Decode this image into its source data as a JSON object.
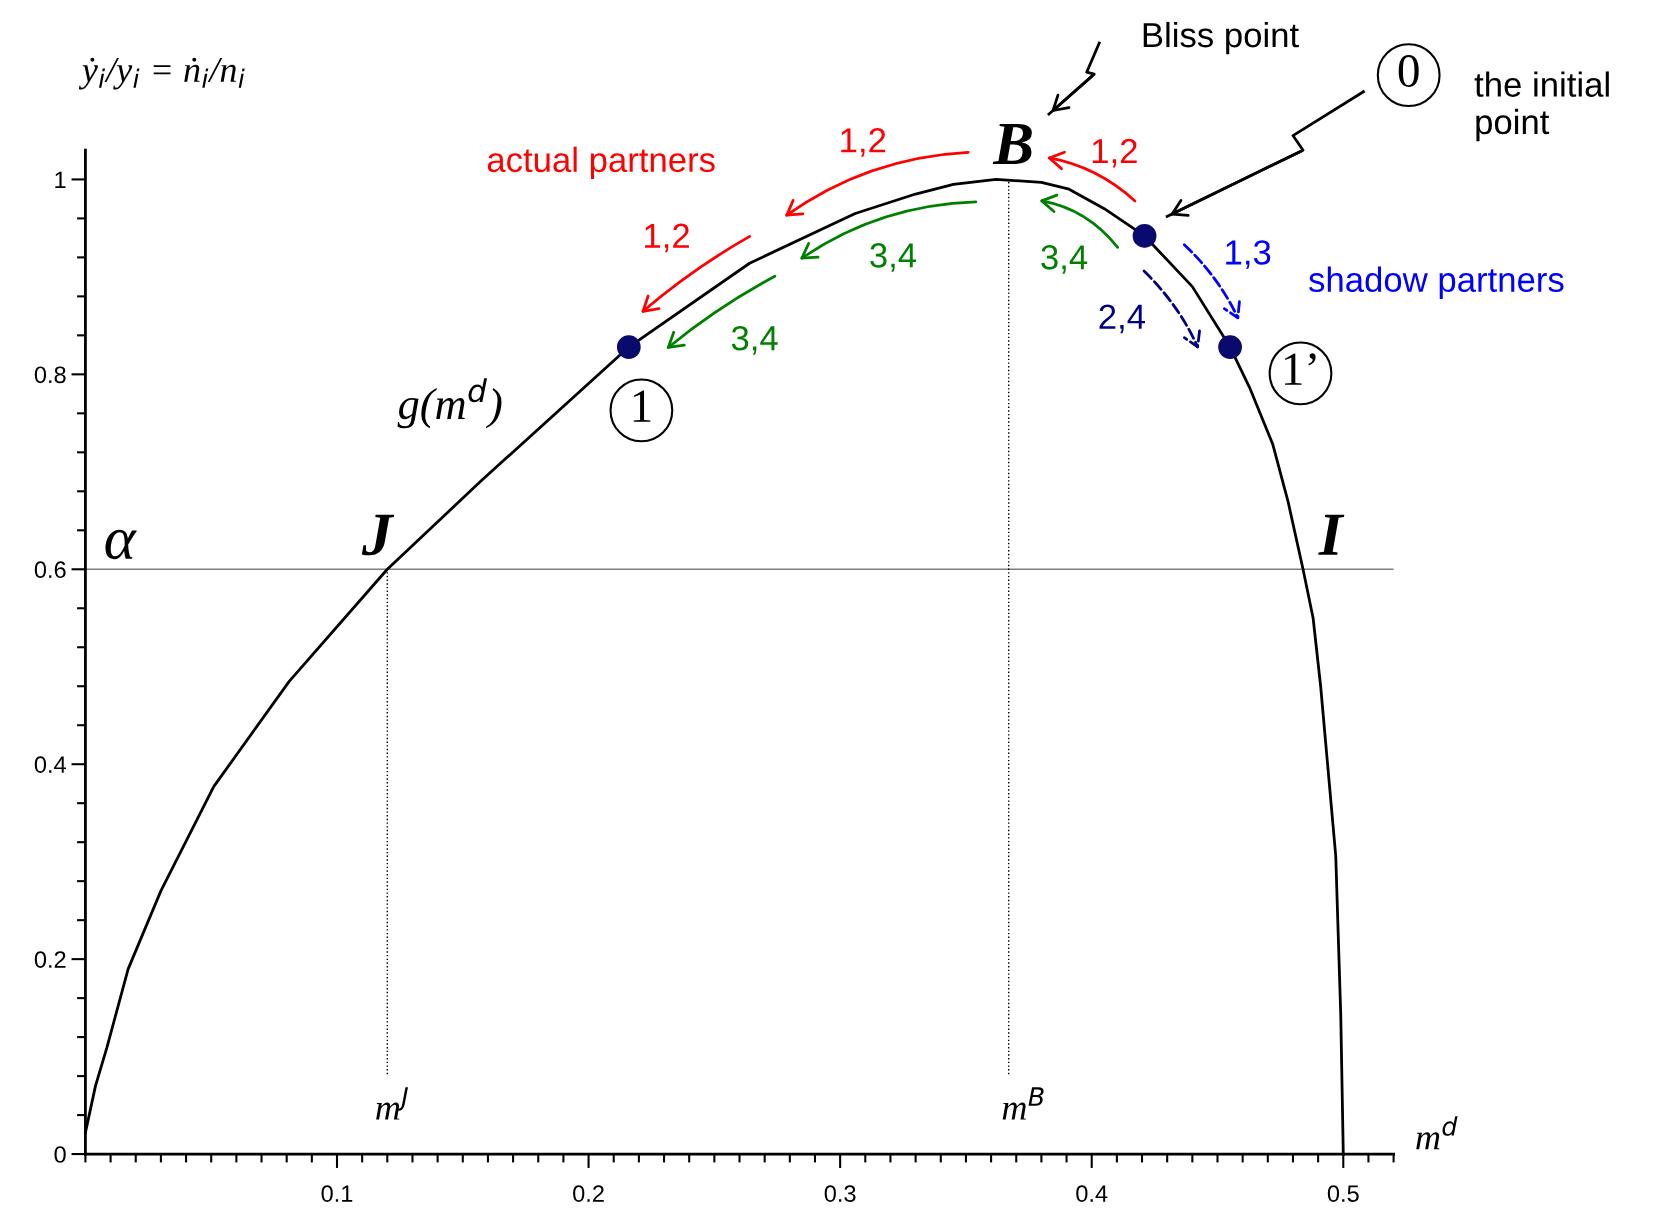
{
  "chart_data": {
    "type": "line",
    "xlabel": "m$^{d}$",
    "ylabel": "ẏ$_{i}$/y$_{i}$ = ṅ$_{i}$/n$_{i}$",
    "xlim": [
      0,
      0.52
    ],
    "ylim": [
      0,
      1.03
    ],
    "xticks": [
      0.1,
      0.2,
      0.3,
      0.4,
      0.5
    ],
    "yticks": [
      0,
      0.2,
      0.4,
      0.6,
      0.8,
      1
    ],
    "grid": false,
    "series": [
      {
        "color": "#000000",
        "x": [
          0,
          0.004,
          0.0085,
          0.017,
          0.03,
          0.051,
          0.081,
          0.12,
          0.157,
          0.216,
          0.264,
          0.306,
          0.33,
          0.345,
          0.362,
          0.38,
          0.391,
          0.405,
          0.421,
          0.44,
          0.455,
          0.463,
          0.472,
          0.478,
          0.484,
          0.488,
          0.491,
          0.497,
          0.499,
          0.5
        ],
        "values": [
          0.022,
          0.07,
          0.109,
          0.19,
          0.27,
          0.377,
          0.485,
          0.6,
          0.69,
          0.828,
          0.914,
          0.965,
          0.985,
          0.995,
          1.0,
          0.997,
          0.99,
          0.97,
          0.942,
          0.89,
          0.828,
          0.785,
          0.728,
          0.67,
          0.6,
          0.55,
          0.48,
          0.306,
          0.142,
          0
        ]
      },
      {
        "type": "scatter",
        "color": "#0a0a6e",
        "marker": "circle",
        "x": [
          0.216,
          0.421,
          0.455
        ],
        "values": [
          0.828,
          0.942,
          0.828
        ]
      },
      {
        "type": "line",
        "color": "#000000",
        "line_style": "dotted",
        "x": [
          0.12,
          0.12
        ],
        "values": [
          0.082,
          0.6
        ]
      },
      {
        "type": "line",
        "color": "#000000",
        "line_style": "dotted",
        "x": [
          0.367,
          0.367
        ],
        "values": [
          0.082,
          1.0
        ]
      }
    ],
    "ref_lines": [
      {
        "axis": "y",
        "value": 0.6,
        "color": "#808080"
      }
    ],
    "annotations": [
      "α",
      "J",
      "I",
      "B",
      "g(m$^{d}$)",
      "m$^{J}$",
      "m$^{B}$",
      "Bliss point",
      "0",
      "the initial\npoint",
      "1",
      "1’",
      "actual partners",
      "shadow partners",
      "1,2",
      "1,2",
      "1,2",
      "3,4",
      "3,4",
      "3,4",
      "1,3",
      "2,4"
    ]
  }
}
